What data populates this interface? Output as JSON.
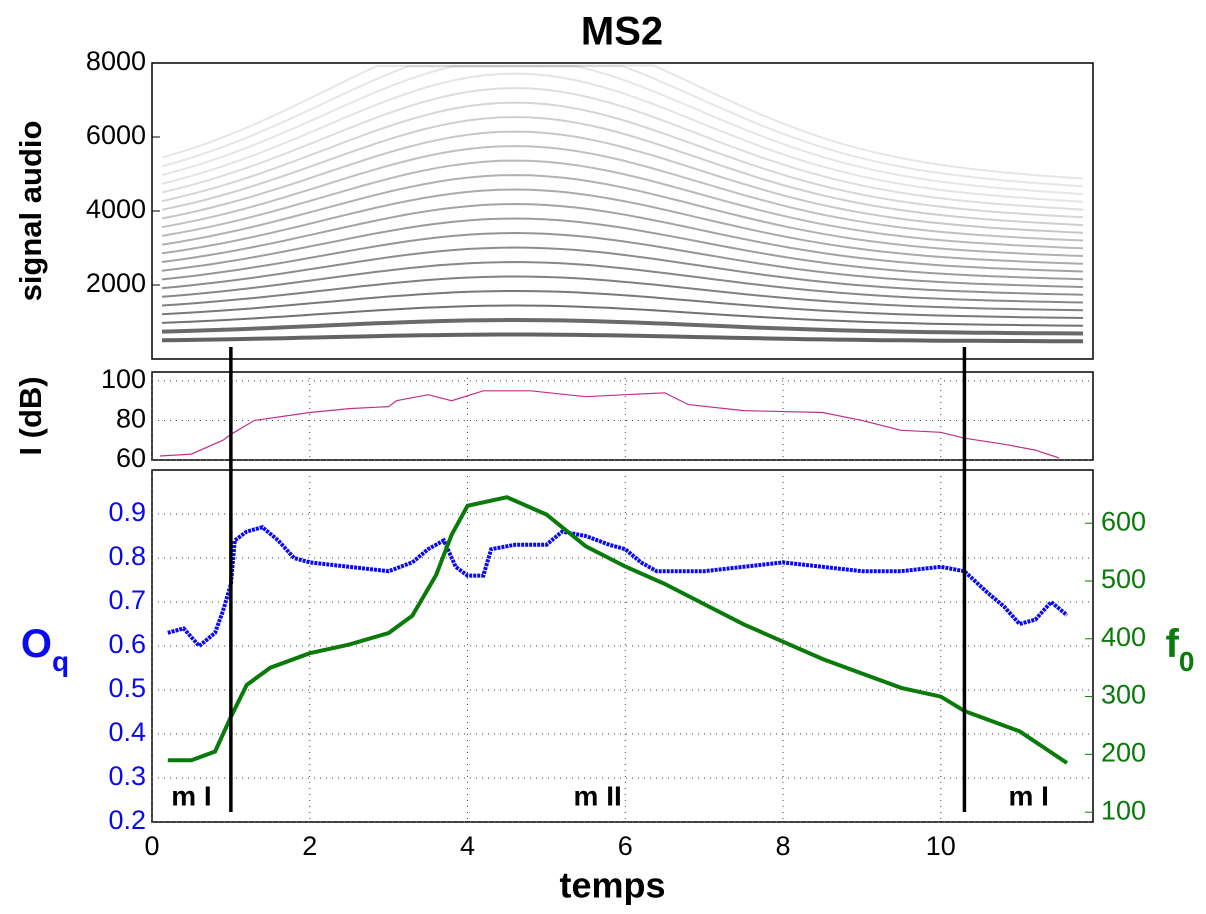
{
  "chart_data": [
    {
      "type": "spectrogram",
      "title": "MS2",
      "ylabel": "signal audio",
      "xlim": [
        0,
        11.93
      ],
      "ylim": [
        0,
        8000
      ],
      "yticks": [
        2000,
        4000,
        6000,
        8000
      ]
    },
    {
      "type": "line",
      "ylabel": "I (dB)",
      "xlim": [
        0,
        11.93
      ],
      "ylim": [
        60,
        104.5
      ],
      "yticks": [
        60,
        80,
        100
      ],
      "xticks": [
        0,
        2,
        4,
        6,
        8,
        10
      ],
      "grid": true,
      "x": [
        0.1,
        0.5,
        0.9,
        1.0,
        1.3,
        2.0,
        2.5,
        3.0,
        3.1,
        3.5,
        3.8,
        4.2,
        4.8,
        5.5,
        6.0,
        6.5,
        6.8,
        7.5,
        8.5,
        9.0,
        9.5,
        10.0,
        10.3,
        10.8,
        11.2,
        11.5
      ],
      "series": [
        {
          "name": "I",
          "color": "#c0308a",
          "values": [
            62,
            63,
            70,
            73,
            80,
            84,
            86,
            87,
            90,
            93,
            90,
            95,
            95,
            92,
            93,
            94,
            88,
            85,
            84,
            80,
            75,
            74,
            71,
            68,
            65,
            61
          ]
        }
      ]
    },
    {
      "type": "line",
      "xlabel": "temps",
      "ylabel": {
        "text": "O",
        "sub": "q"
      },
      "y2label": {
        "text": "f",
        "sub": "0"
      },
      "xlim": [
        0,
        11.93
      ],
      "ylim": [
        0.2,
        1.0
      ],
      "y2lim": [
        83,
        692
      ],
      "xticks": [
        0,
        2,
        4,
        6,
        8,
        10
      ],
      "yticks": [
        0.2,
        0.3,
        0.4,
        0.5,
        0.6,
        0.7,
        0.8,
        0.9
      ],
      "y2ticks": [
        100,
        200,
        300,
        400,
        500,
        600
      ],
      "grid": true,
      "boundaries": [
        1.0,
        10.3
      ],
      "regions": [
        "m I",
        "m II",
        "m I"
      ],
      "series": [
        {
          "name": "Oq",
          "color": "#0a0af0",
          "x": [
            0.2,
            0.4,
            0.6,
            0.8,
            0.9,
            1.0,
            1.05,
            1.2,
            1.4,
            1.6,
            1.8,
            2.0,
            2.5,
            3.0,
            3.3,
            3.5,
            3.7,
            3.85,
            4.0,
            4.2,
            4.3,
            4.6,
            5.0,
            5.2,
            5.5,
            5.8,
            6.0,
            6.2,
            6.4,
            7.0,
            7.5,
            8.0,
            8.5,
            9.0,
            9.5,
            10.0,
            10.3,
            10.6,
            10.8,
            11.0,
            11.2,
            11.4,
            11.6
          ],
          "values": [
            0.63,
            0.64,
            0.6,
            0.63,
            0.68,
            0.74,
            0.84,
            0.86,
            0.87,
            0.84,
            0.8,
            0.79,
            0.78,
            0.77,
            0.79,
            0.82,
            0.84,
            0.78,
            0.76,
            0.76,
            0.82,
            0.83,
            0.83,
            0.86,
            0.85,
            0.83,
            0.82,
            0.79,
            0.77,
            0.77,
            0.78,
            0.79,
            0.78,
            0.77,
            0.77,
            0.78,
            0.77,
            0.72,
            0.69,
            0.65,
            0.66,
            0.7,
            0.67
          ]
        },
        {
          "name": "f0",
          "color": "#0a7a0a",
          "axis": "y2",
          "x": [
            0.2,
            0.5,
            0.8,
            1.0,
            1.2,
            1.5,
            2.0,
            2.5,
            3.0,
            3.3,
            3.6,
            3.8,
            4.0,
            4.5,
            5.0,
            5.5,
            6.0,
            6.5,
            7.0,
            7.5,
            8.0,
            8.5,
            9.0,
            9.5,
            10.0,
            10.3,
            10.6,
            11.0,
            11.6
          ],
          "values": [
            190,
            190,
            205,
            265,
            320,
            350,
            375,
            390,
            410,
            440,
            510,
            580,
            630,
            645,
            615,
            560,
            525,
            495,
            460,
            425,
            395,
            365,
            340,
            315,
            300,
            275,
            260,
            240,
            185
          ]
        }
      ]
    }
  ]
}
